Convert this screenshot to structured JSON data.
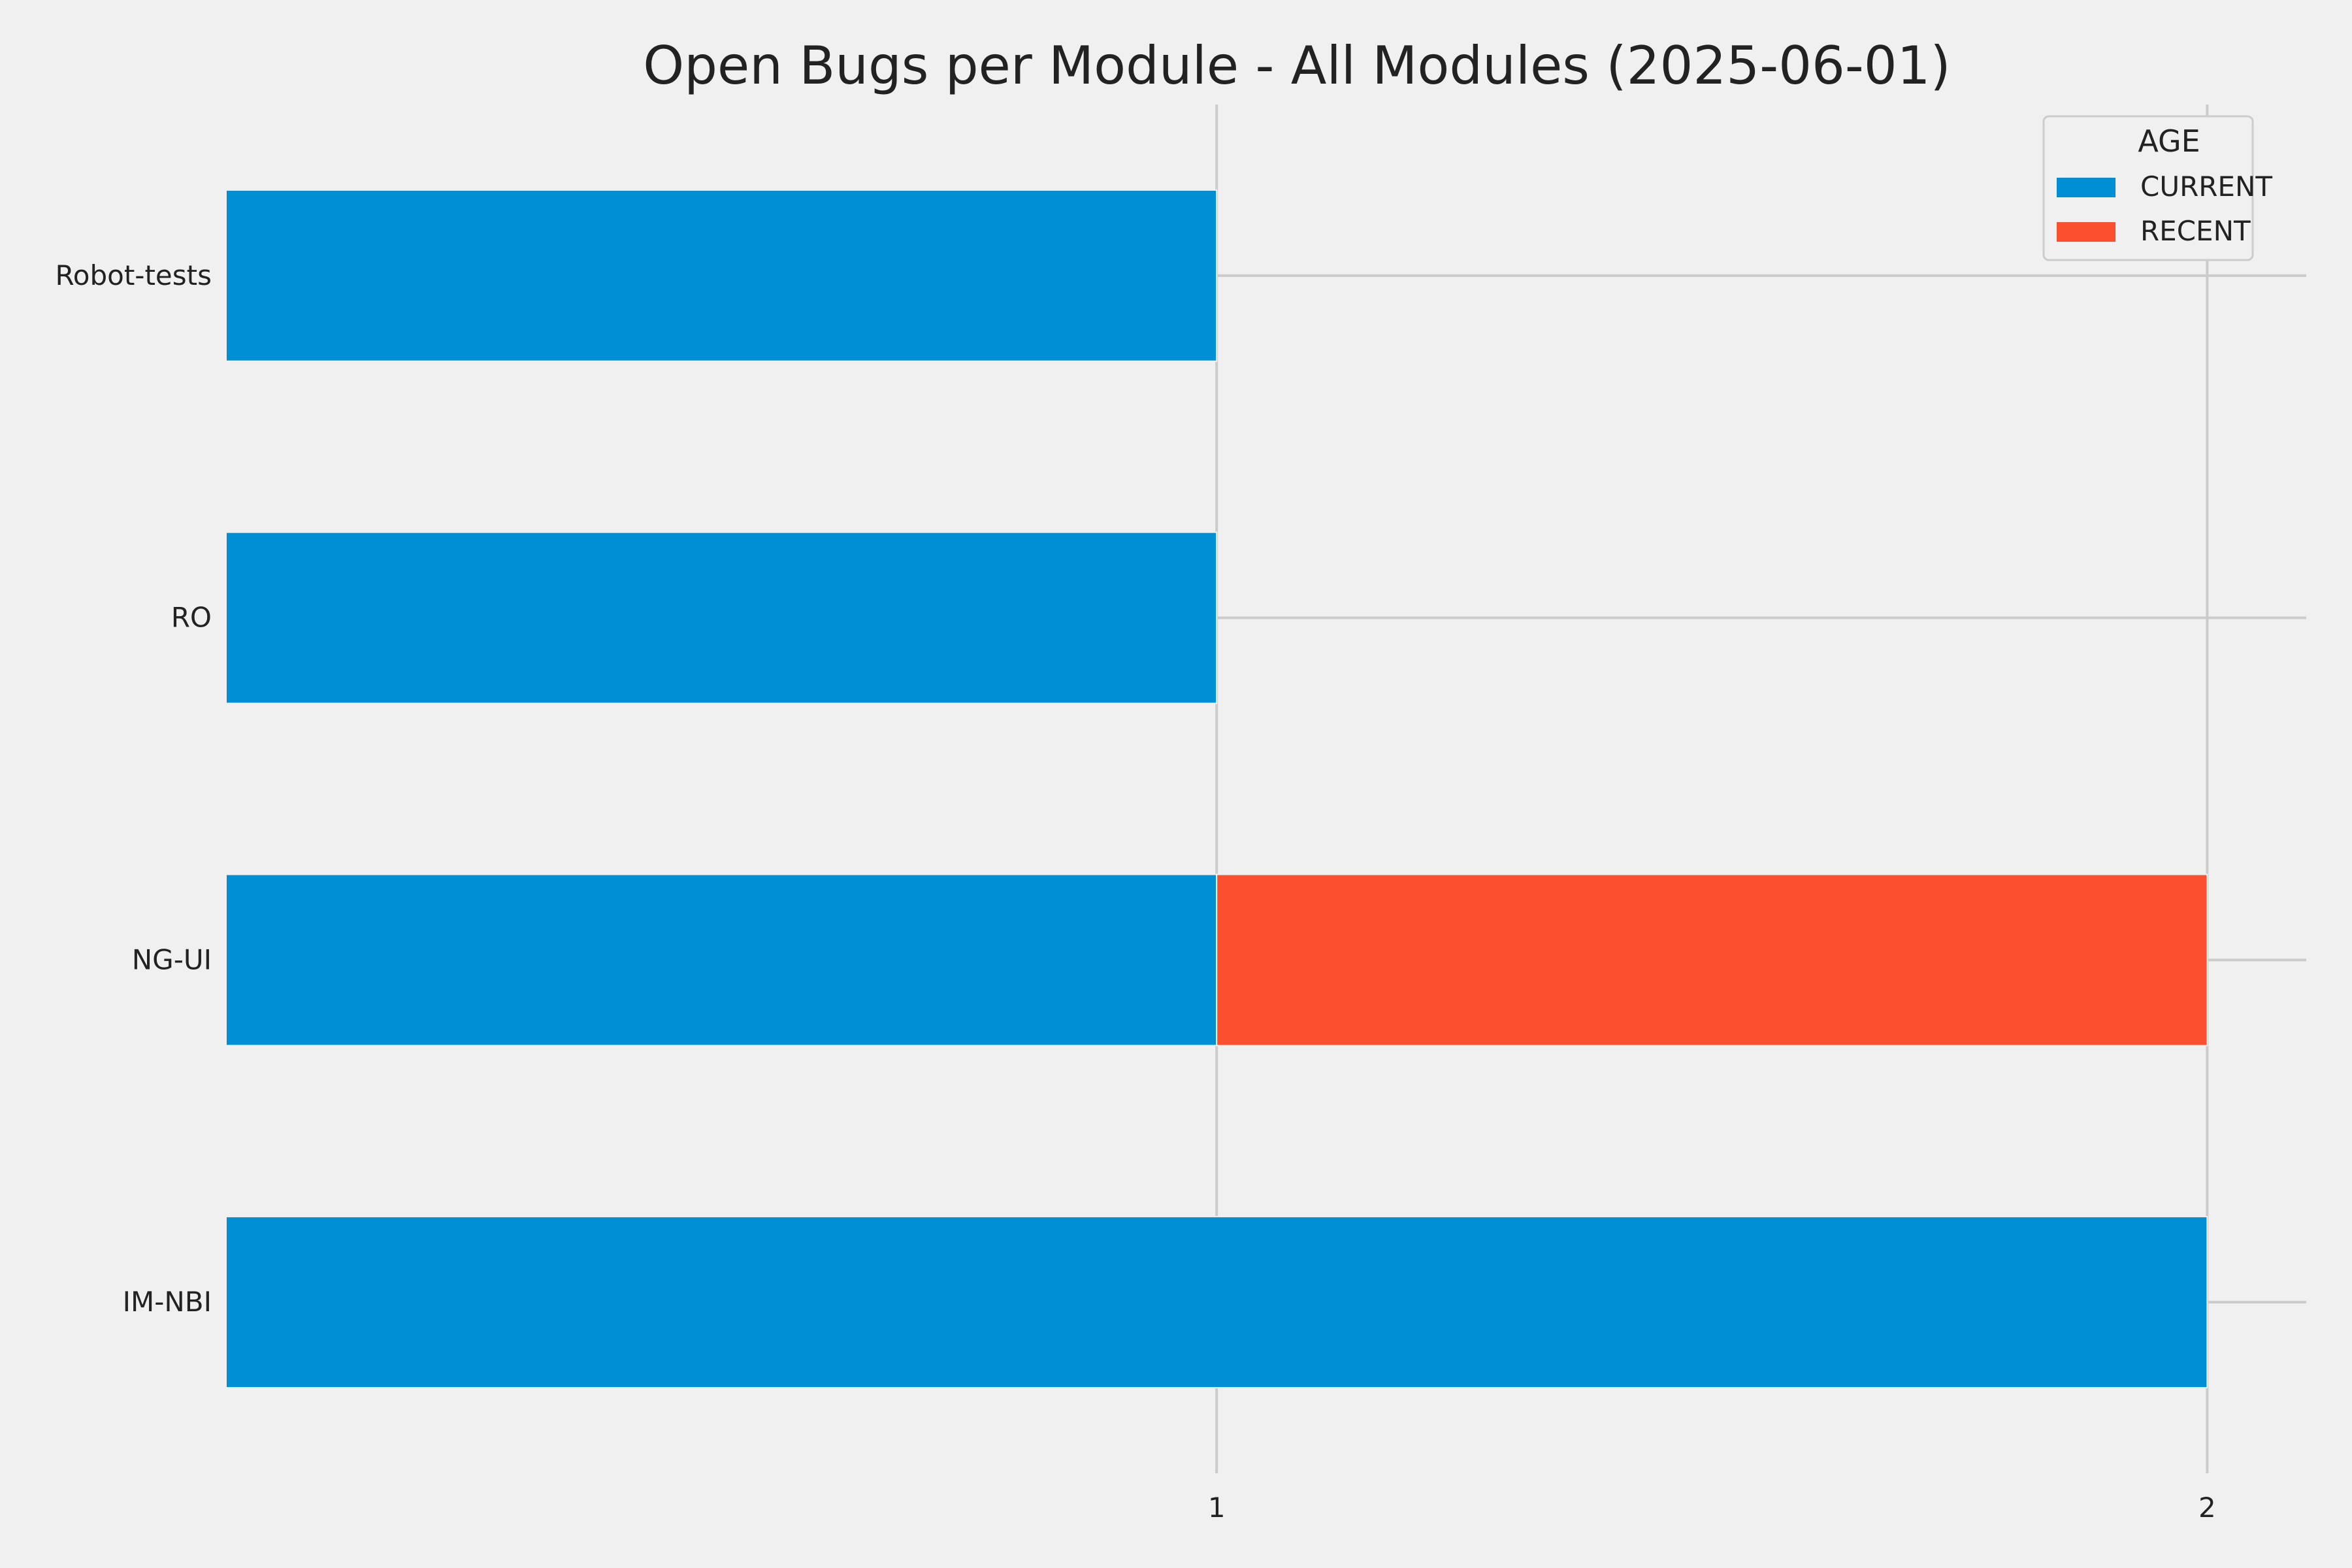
{
  "chart_data": {
    "type": "bar",
    "orientation": "horizontal",
    "stacked": true,
    "title": "Open Bugs per Module - All Modules (2025-06-01)",
    "xlabel": "",
    "ylabel": "",
    "categories": [
      "IM-NBI",
      "NG-UI",
      "RO",
      "Robot-tests"
    ],
    "series": [
      {
        "name": "CURRENT",
        "color": "#008fd5",
        "values": [
          2,
          1,
          1,
          1
        ]
      },
      {
        "name": "RECENT",
        "color": "#fc4f30",
        "values": [
          0,
          1,
          0,
          0
        ]
      }
    ],
    "xlim": [
      0,
      2.1
    ],
    "xticks": [
      1,
      2
    ],
    "grid": true,
    "legend": {
      "title": "AGE",
      "placement": "top-right"
    }
  }
}
